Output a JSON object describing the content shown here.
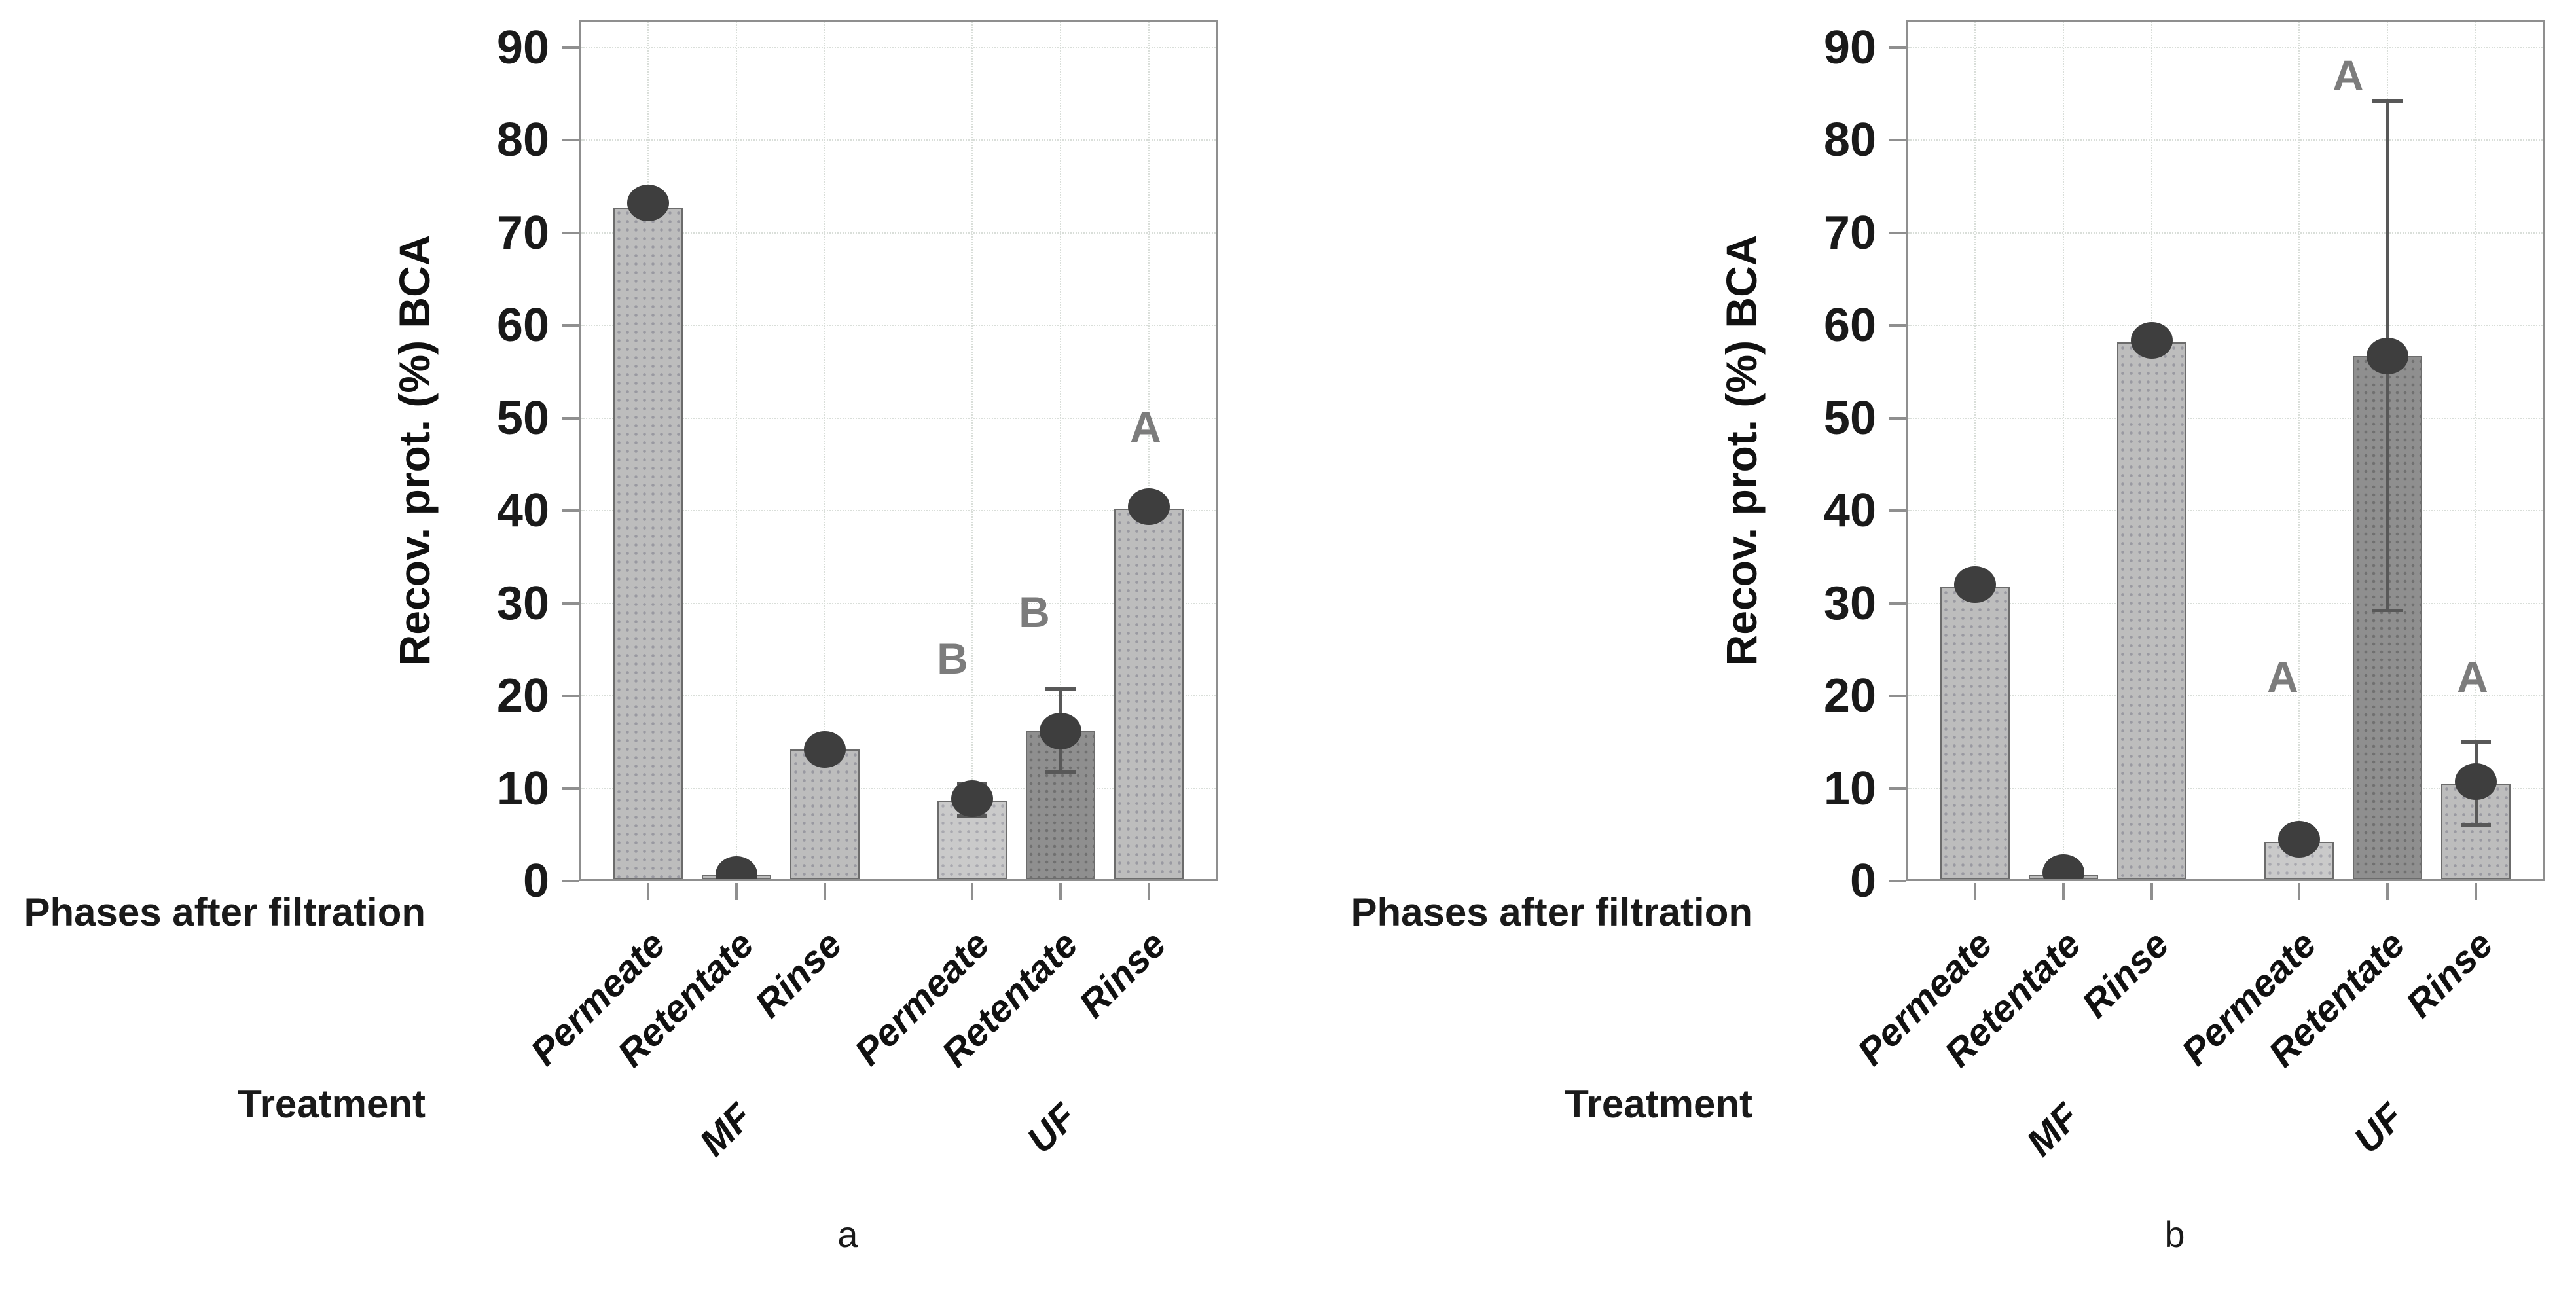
{
  "figure": {
    "background": "#ffffff",
    "panel_captions": [
      "a",
      "b"
    ]
  },
  "colors": {
    "bar_light": "#bdbdbd",
    "bar_lighter": "#cacaca",
    "bar_dark": "#8f8f8f",
    "bar_border": "#6c6c6c",
    "marker": "#3e3e3e",
    "error": "#585858",
    "grid": "#d9ded9",
    "axis": "#8f8f8f",
    "letter": "#7c7c7c",
    "text": "#1a1a1a"
  },
  "chart_data": [
    {
      "id": "a",
      "type": "bar",
      "caption": "a",
      "ylabel": "Recov. prot. (%) BCA",
      "xaxis_label": "Phases after filtration",
      "group_axis_label": "Treatment",
      "groups": [
        "MF",
        "UF"
      ],
      "categories": [
        "Permeate",
        "Retentate",
        "Rinse",
        "Permeate",
        "Retentate",
        "Rinse"
      ],
      "values": [
        72.5,
        0.4,
        14,
        8.5,
        16,
        40
      ],
      "markers": [
        73,
        0.5,
        14,
        8.7,
        16,
        40.2
      ],
      "errors": [
        null,
        null,
        null,
        [
          6.8,
          10.3
        ],
        [
          11.5,
          20.5
        ],
        null
      ],
      "letters": [
        null,
        null,
        null,
        "B",
        "B",
        "A"
      ],
      "letter_y": [
        null,
        null,
        null,
        21.5,
        26.5,
        46.5
      ],
      "letter_dx": [
        0,
        0,
        0,
        -30,
        -40,
        -5
      ],
      "bar_styles": [
        "light",
        "light",
        "light",
        "lighter",
        "dark",
        "light"
      ],
      "ylim": [
        0,
        93
      ],
      "yticks": [
        0,
        10,
        20,
        30,
        40,
        50,
        60,
        70,
        80,
        90
      ],
      "grid": true,
      "legend": false
    },
    {
      "id": "b",
      "type": "bar",
      "caption": "b",
      "ylabel": "Recov. prot. (%) BCA",
      "xaxis_label": "Phases after filtration",
      "group_axis_label": "Treatment",
      "groups": [
        "MF",
        "UF"
      ],
      "categories": [
        "Permeate",
        "Retentate",
        "Rinse",
        "Permeate",
        "Retentate",
        "Rinse"
      ],
      "values": [
        31.5,
        0.5,
        58,
        4,
        56.5,
        10.3
      ],
      "markers": [
        31.8,
        0.7,
        58.2,
        4.3,
        56.5,
        10.5
      ],
      "errors": [
        null,
        null,
        null,
        null,
        [
          29,
          84
        ],
        [
          5.8,
          14.8
        ]
      ],
      "letters": [
        null,
        null,
        null,
        "A",
        "A",
        "A"
      ],
      "letter_y": [
        null,
        null,
        null,
        19.5,
        84.5,
        19.5
      ],
      "letter_dx": [
        0,
        0,
        0,
        -25,
        -60,
        -5
      ],
      "bar_styles": [
        "light",
        "light",
        "light",
        "lighter",
        "dark",
        "light"
      ],
      "ylim": [
        0,
        93
      ],
      "yticks": [
        0,
        10,
        20,
        30,
        40,
        50,
        60,
        70,
        80,
        90
      ],
      "grid": true,
      "legend": false
    }
  ]
}
